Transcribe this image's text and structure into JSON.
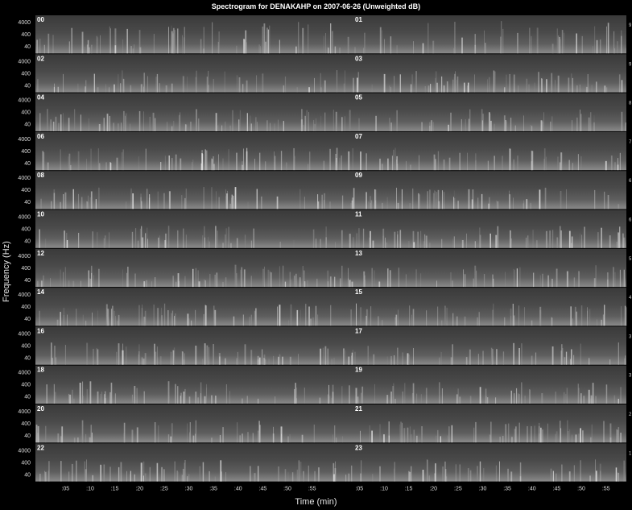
{
  "chart_data": {
    "type": "heatmap",
    "title": "Spectrogram for DENAKAHP on 2007-06-26 (Unweighted dB)",
    "xlabel": "Time (min)",
    "ylabel": "Frequency (Hz)",
    "y_ticks": [
      "4000",
      "400",
      "40"
    ],
    "x_ticks": [
      ":05",
      ":10",
      ":15",
      ":20",
      ":25",
      ":30",
      ":35",
      ":40",
      ":45",
      ":50",
      ":55"
    ],
    "colormap": "grayscale",
    "hours": [
      "00",
      "01",
      "02",
      "03",
      "04",
      "05",
      "06",
      "07",
      "08",
      "09",
      "10",
      "11",
      "12",
      "13",
      "14",
      "15",
      "16",
      "17",
      "18",
      "19",
      "20",
      "21",
      "22",
      "23"
    ],
    "right_scale": [
      "9",
      "8",
      "7",
      "6",
      "5",
      "4",
      "3",
      "2",
      "1"
    ]
  }
}
